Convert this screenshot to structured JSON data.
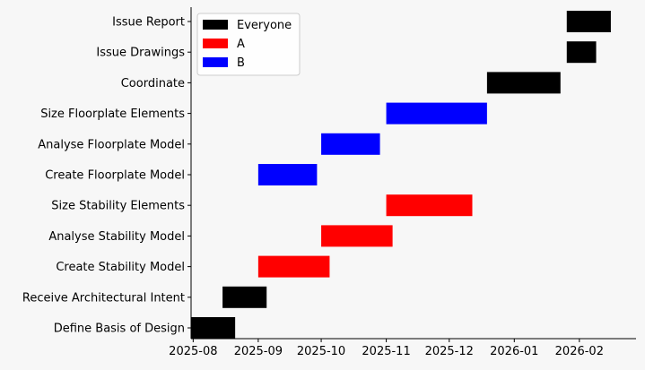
{
  "chart_data": {
    "type": "gantt",
    "title": "",
    "xlabel": "",
    "ylabel": "",
    "xlim": [
      "2025-07-31",
      "2026-02-28"
    ],
    "x_ticks": [
      "2025-08",
      "2025-09",
      "2025-10",
      "2025-11",
      "2025-12",
      "2026-01",
      "2026-02"
    ],
    "x_tick_dates": [
      "2025-08-01",
      "2025-09-01",
      "2025-10-01",
      "2025-11-01",
      "2025-12-01",
      "2026-01-01",
      "2026-02-01"
    ],
    "legend": {
      "placement": "top-left",
      "entries": [
        {
          "name": "Everyone",
          "color": "#000000"
        },
        {
          "name": "A",
          "color": "#ff0000"
        },
        {
          "name": "B",
          "color": "#0000ff"
        }
      ]
    },
    "tasks": [
      {
        "name": "Define Basis of Design",
        "start": "2025-07-31",
        "end": "2025-08-21",
        "group": "Everyone"
      },
      {
        "name": "Receive Architectural Intent",
        "start": "2025-08-15",
        "end": "2025-09-05",
        "group": "Everyone"
      },
      {
        "name": "Create Stability Model",
        "start": "2025-09-01",
        "end": "2025-10-05",
        "group": "A"
      },
      {
        "name": "Analyse Stability Model",
        "start": "2025-10-01",
        "end": "2025-11-04",
        "group": "A"
      },
      {
        "name": "Size Stability Elements",
        "start": "2025-11-01",
        "end": "2025-12-12",
        "group": "A"
      },
      {
        "name": "Create Floorplate Model",
        "start": "2025-09-01",
        "end": "2025-09-29",
        "group": "B"
      },
      {
        "name": "Analyse Floorplate Model",
        "start": "2025-10-01",
        "end": "2025-10-29",
        "group": "B"
      },
      {
        "name": "Size Floorplate Elements",
        "start": "2025-11-01",
        "end": "2025-12-19",
        "group": "B"
      },
      {
        "name": "Coordinate",
        "start": "2025-12-19",
        "end": "2026-01-23",
        "group": "Everyone"
      },
      {
        "name": "Issue Drawings",
        "start": "2026-01-26",
        "end": "2026-02-09",
        "group": "Everyone"
      },
      {
        "name": "Issue Report",
        "start": "2026-01-26",
        "end": "2026-02-16",
        "group": "Everyone"
      }
    ]
  }
}
